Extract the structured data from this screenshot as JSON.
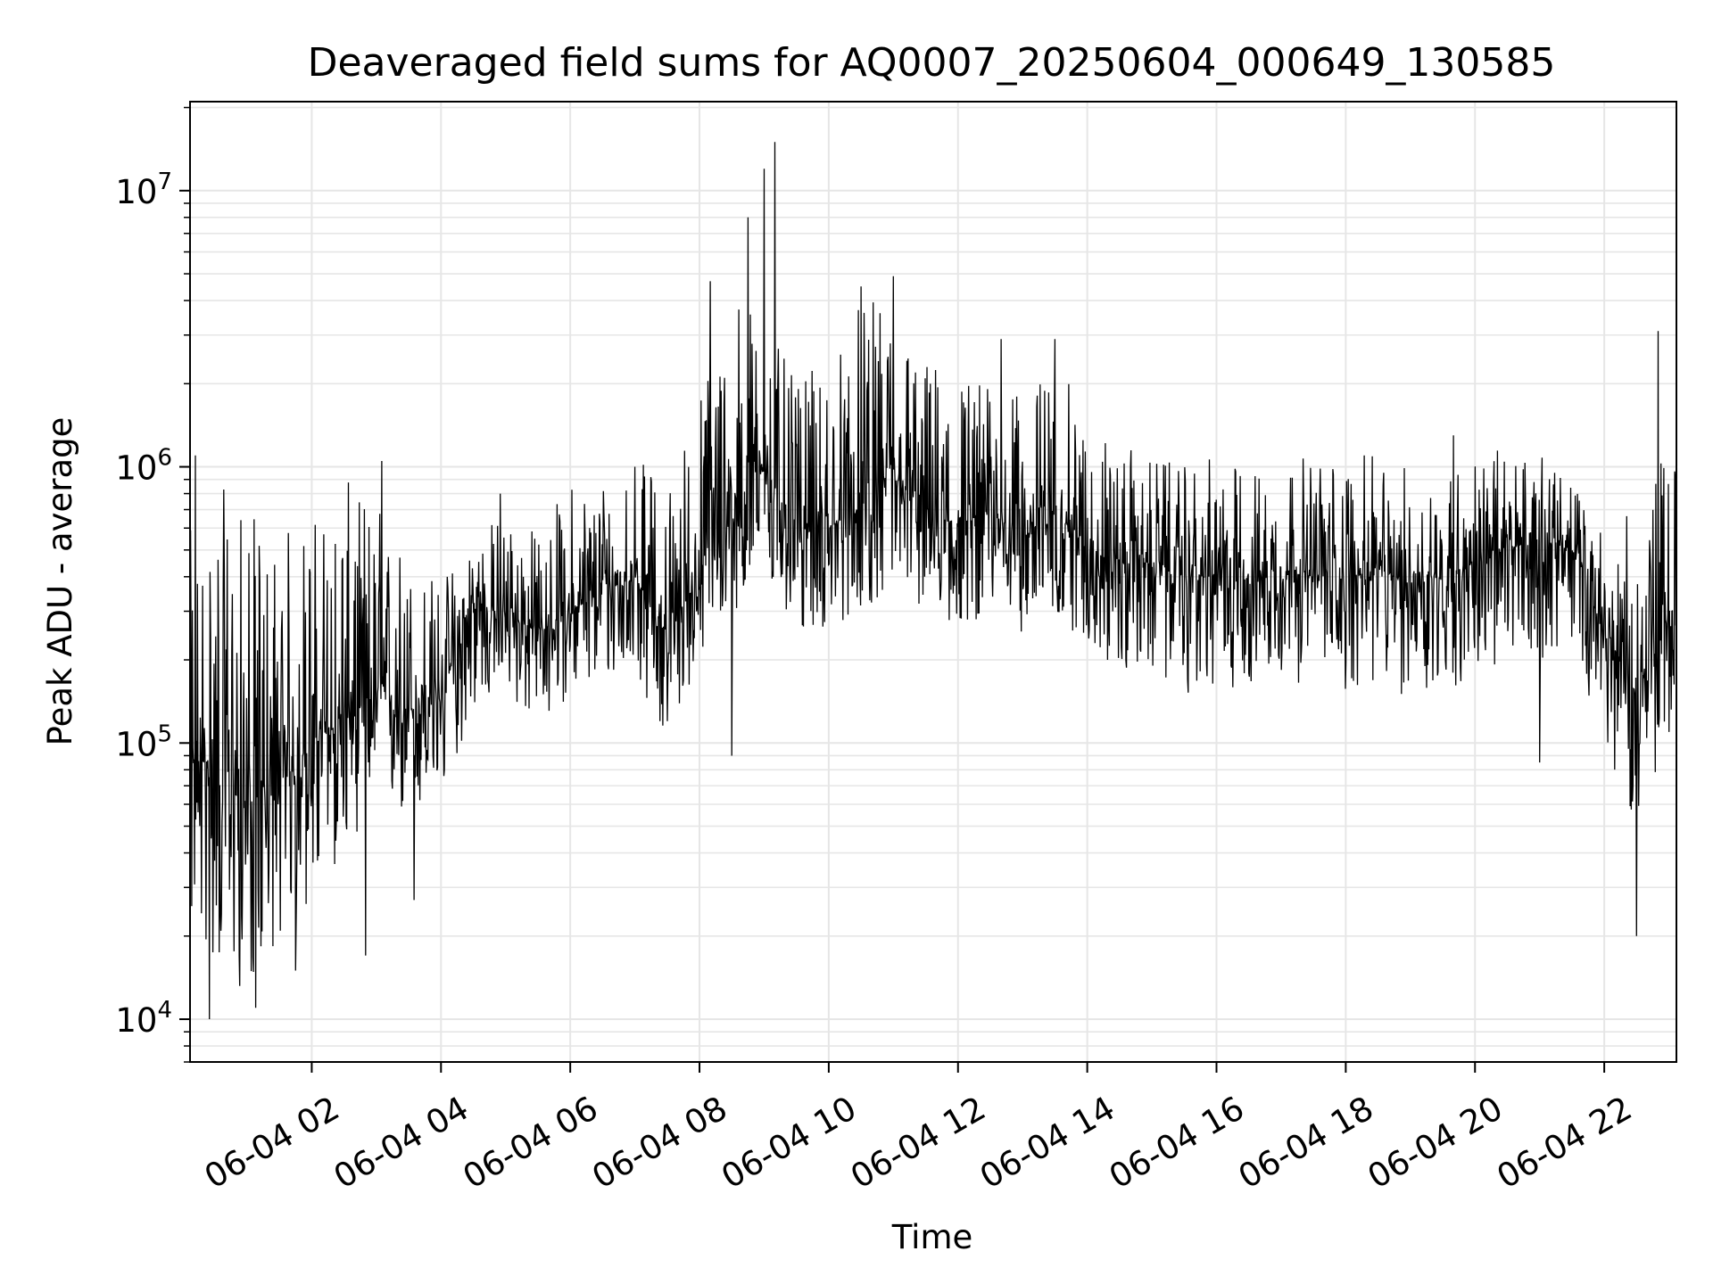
{
  "chart_data": {
    "type": "line",
    "title": "Deaveraged field sums for AQ0007_20250604_000649_130585",
    "xlabel": "Time",
    "ylabel": "Peak ADU - average",
    "y_scale": "log",
    "ylim": [
      7000,
      21000000
    ],
    "xlim": [
      "06-04 00:07",
      "06-04 23:07"
    ],
    "grid": true,
    "line_color": "#000000",
    "grid_color": "#e6e6e6",
    "x_ticks": [
      {
        "value": "06-04 02:00",
        "label": "06-04 02"
      },
      {
        "value": "06-04 04:00",
        "label": "06-04 04"
      },
      {
        "value": "06-04 06:00",
        "label": "06-04 06"
      },
      {
        "value": "06-04 08:00",
        "label": "06-04 08"
      },
      {
        "value": "06-04 10:00",
        "label": "06-04 10"
      },
      {
        "value": "06-04 12:00",
        "label": "06-04 12"
      },
      {
        "value": "06-04 14:00",
        "label": "06-04 14"
      },
      {
        "value": "06-04 16:00",
        "label": "06-04 16"
      },
      {
        "value": "06-04 18:00",
        "label": "06-04 18"
      },
      {
        "value": "06-04 20:00",
        "label": "06-04 20"
      },
      {
        "value": "06-04 22:00",
        "label": "06-04 22"
      }
    ],
    "y_ticks": [
      {
        "value": 10000,
        "base": "10",
        "exp": "4"
      },
      {
        "value": 100000,
        "base": "10",
        "exp": "5"
      },
      {
        "value": 1000000,
        "base": "10",
        "exp": "6"
      },
      {
        "value": 10000000,
        "base": "10",
        "exp": "7"
      }
    ],
    "series": [
      {
        "x": [
          "06-04 00:10",
          "06-04 00:30",
          "06-04 01:00",
          "06-04 01:30",
          "06-04 02:00",
          "06-04 02:30",
          "06-04 03:00",
          "06-04 03:30",
          "06-04 04:00",
          "06-04 04:30",
          "06-04 05:00",
          "06-04 05:30",
          "06-04 06:00",
          "06-04 06:30",
          "06-04 07:00",
          "06-04 07:30",
          "06-04 08:00",
          "06-04 08:30",
          "06-04 09:00",
          "06-04 09:30",
          "06-04 10:00",
          "06-04 10:30",
          "06-04 11:00",
          "06-04 11:30",
          "06-04 12:00",
          "06-04 12:30",
          "06-04 13:00",
          "06-04 13:30",
          "06-04 14:00",
          "06-04 14:30",
          "06-04 15:00",
          "06-04 15:30",
          "06-04 16:00",
          "06-04 16:30",
          "06-04 17:00",
          "06-04 17:30",
          "06-04 18:00",
          "06-04 18:30",
          "06-04 19:00",
          "06-04 19:30",
          "06-04 20:00",
          "06-04 20:30",
          "06-04 21:00",
          "06-04 21:30",
          "06-04 22:00",
          "06-04 22:30",
          "06-04 23:00"
        ],
        "y": [
          80000,
          90000,
          60000,
          70000,
          100000,
          120000,
          150000,
          130000,
          150000,
          300000,
          300000,
          250000,
          300000,
          350000,
          400000,
          250000,
          400000,
          700000,
          1000000,
          600000,
          600000,
          700000,
          900000,
          700000,
          600000,
          700000,
          550000,
          700000,
          500000,
          450000,
          450000,
          400000,
          400000,
          400000,
          420000,
          400000,
          400000,
          420000,
          380000,
          400000,
          450000,
          500000,
          550000,
          500000,
          250000,
          150000,
          300000
        ],
        "y_low": [
          20000,
          15000,
          12000,
          20000,
          25000,
          40000,
          60000,
          50000,
          60000,
          130000,
          150000,
          110000,
          150000,
          160000,
          180000,
          100000,
          200000,
          300000,
          350000,
          250000,
          250000,
          300000,
          350000,
          300000,
          250000,
          300000,
          250000,
          280000,
          230000,
          170000,
          180000,
          150000,
          150000,
          160000,
          170000,
          160000,
          150000,
          160000,
          140000,
          150000,
          170000,
          180000,
          200000,
          230000,
          100000,
          50000,
          100000
        ],
        "y_high": [
          600000,
          900000,
          700000,
          600000,
          700000,
          900000,
          800000,
          500000,
          400000,
          600000,
          700000,
          600000,
          900000,
          1000000,
          1100000,
          900000,
          2000000,
          5000000,
          3500000,
          2000000,
          2500000,
          4000000,
          4000000,
          2500000,
          2500000,
          2000000,
          1800000,
          2500000,
          1500000,
          1200000,
          1100000,
          1000000,
          1100000,
          1000000,
          1100000,
          1100000,
          1100000,
          1100000,
          1000000,
          1000000,
          1100000,
          1200000,
          1100000,
          900000,
          600000,
          700000,
          1200000
        ]
      }
    ],
    "spikes": [
      {
        "x": "06-04 00:12",
        "y": 1100000
      },
      {
        "x": "06-04 00:25",
        "y": 10000
      },
      {
        "x": "06-04 01:08",
        "y": 11000
      },
      {
        "x": "06-04 01:45",
        "y": 15000
      },
      {
        "x": "06-04 02:50",
        "y": 17000
      },
      {
        "x": "06-04 03:05",
        "y": 1050000
      },
      {
        "x": "06-04 03:35",
        "y": 27000
      },
      {
        "x": "06-04 04:55",
        "y": 800000
      },
      {
        "x": "06-04 07:00",
        "y": 1000000
      },
      {
        "x": "06-04 08:10",
        "y": 4700000
      },
      {
        "x": "06-04 08:30",
        "y": 90000
      },
      {
        "x": "06-04 08:45",
        "y": 8000000
      },
      {
        "x": "06-04 09:00",
        "y": 12000000
      },
      {
        "x": "06-04 09:10",
        "y": 15000000
      },
      {
        "x": "06-04 10:30",
        "y": 4500000
      },
      {
        "x": "06-04 11:00",
        "y": 4900000
      },
      {
        "x": "06-04 12:40",
        "y": 2900000
      },
      {
        "x": "06-04 13:30",
        "y": 2900000
      },
      {
        "x": "06-04 19:40",
        "y": 1300000
      },
      {
        "x": "06-04 21:00",
        "y": 85000
      },
      {
        "x": "06-04 22:30",
        "y": 20000
      },
      {
        "x": "06-04 22:50",
        "y": 3100000
      }
    ]
  }
}
